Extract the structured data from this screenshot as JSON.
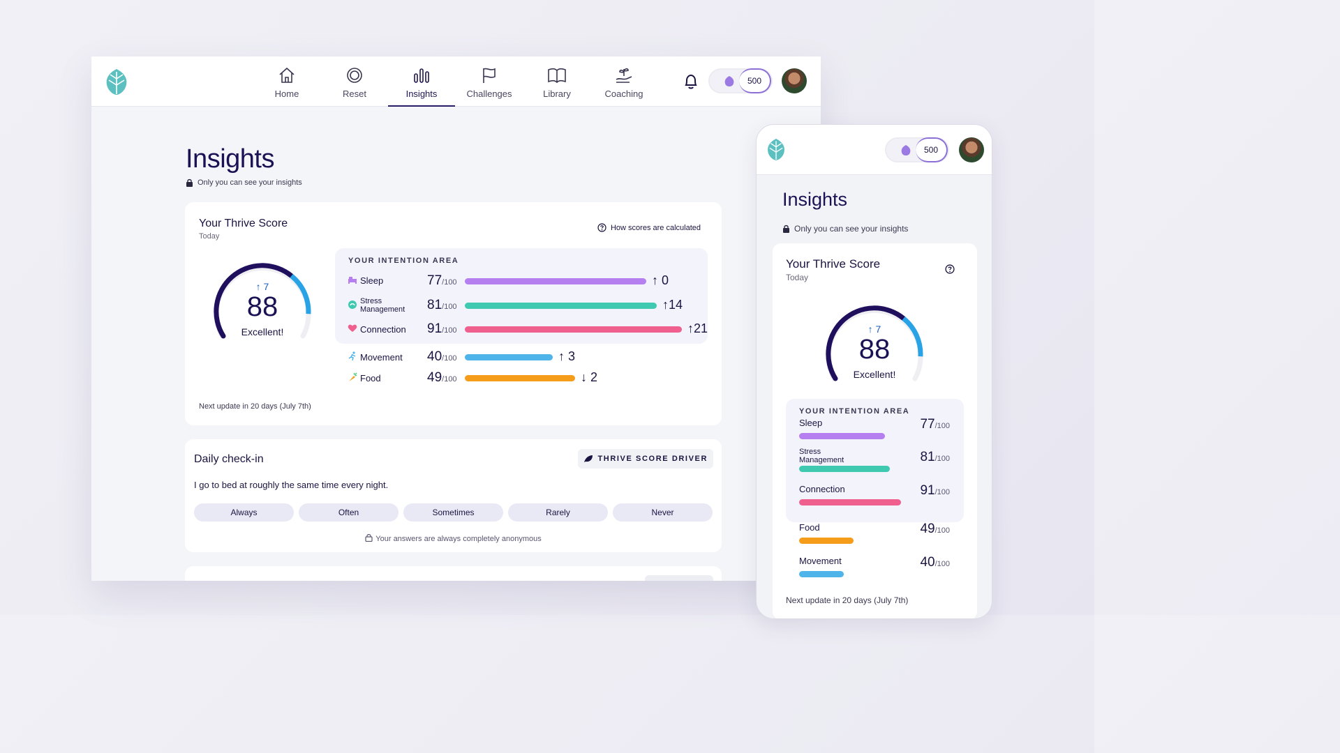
{
  "nav": {
    "items": [
      {
        "label": "Home",
        "icon": "home-icon"
      },
      {
        "label": "Reset",
        "icon": "reset-icon"
      },
      {
        "label": "Insights",
        "icon": "insights-icon"
      },
      {
        "label": "Challenges",
        "icon": "flag-icon"
      },
      {
        "label": "Library",
        "icon": "book-icon"
      },
      {
        "label": "Coaching",
        "icon": "coaching-icon"
      }
    ],
    "active": "Insights",
    "points": "500"
  },
  "page": {
    "title": "Insights",
    "privacy": "Only you can see your insights"
  },
  "thrive": {
    "title": "Your Thrive Score",
    "subtitle": "Today",
    "help_link": "How scores are calculated",
    "score": "88",
    "score_value": 88,
    "change": "↑ 7",
    "rating": "Excellent!",
    "next_update": "Next update in 20 days (July 7th)",
    "intention_caption": "YOUR INTENTION AREA",
    "suffix": "/100",
    "areas": [
      {
        "name": "Sleep",
        "score": "77",
        "value": 77,
        "delta": "↑ 0",
        "color": "#b57ff0"
      },
      {
        "name": "Stress Management",
        "score": "81",
        "value": 81,
        "delta": "↑14",
        "color": "#3ec9b0"
      },
      {
        "name": "Connection",
        "score": "91",
        "value": 91,
        "delta": "↑21",
        "color": "#f0608f"
      },
      {
        "name": "Movement",
        "score": "40",
        "value": 40,
        "delta": "↑ 3",
        "color": "#4fb4ea"
      },
      {
        "name": "Food",
        "score": "49",
        "value": 49,
        "delta": "↓ 2",
        "color": "#f59c1b"
      }
    ]
  },
  "checkin": {
    "title": "Daily check-in",
    "badge": "THRIVE SCORE DRIVER",
    "question": "I go to bed at roughly the same time every night.",
    "options": [
      "Always",
      "Often",
      "Sometimes",
      "Rarely",
      "Never"
    ],
    "anon": "Your answers are always completely anonymous"
  },
  "mobile": {
    "points": "500",
    "title": "Insights",
    "privacy": "Only you can see your insights",
    "thrive_title": "Your Thrive Score",
    "subtitle": "Today",
    "change": "↑ 7",
    "score": "88",
    "rating": "Excellent!",
    "caption": "YOUR INTENTION AREA",
    "next_update": "Next update in 20 days (July 7th)",
    "areas": [
      {
        "name": "Sleep",
        "score": "77",
        "value": 77,
        "color": "#b57ff0"
      },
      {
        "name": "Stress Management",
        "score": "81",
        "value": 81,
        "color": "#3ec9b0"
      },
      {
        "name": "Connection",
        "score": "91",
        "value": 91,
        "color": "#f0608f"
      },
      {
        "name": "Food",
        "score": "49",
        "value": 49,
        "color": "#f59c1b"
      },
      {
        "name": "Movement",
        "score": "40",
        "value": 40,
        "color": "#4fb4ea"
      }
    ]
  },
  "colors": {
    "brand": "#1a1254",
    "gauge_dark": "#1f0f5c",
    "gauge_accent": "#2aa3e6",
    "leaf": "#5cc0c0"
  }
}
